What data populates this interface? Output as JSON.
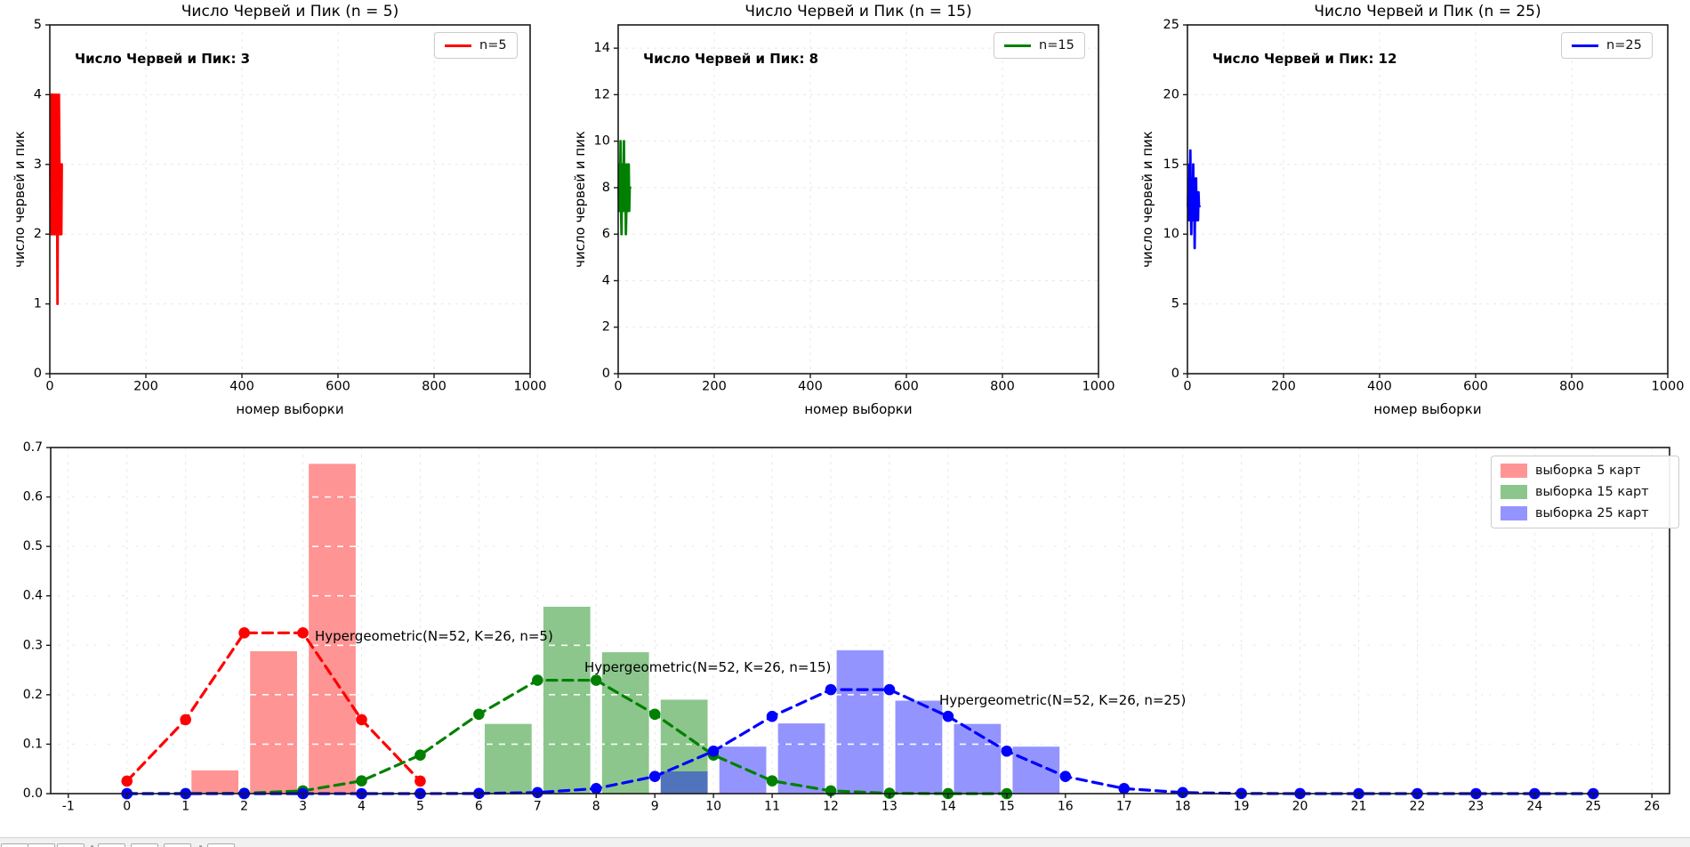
{
  "figure": {
    "background": "#ffffff"
  },
  "chart_data": [
    {
      "id": "trace-n5",
      "type": "line",
      "title": "Число Червей и Пик (n = 5)",
      "xlabel": "номер выборки",
      "ylabel": "число червей и пик",
      "annotation": "Число Червей и Пик: 3",
      "color": "#ff0000",
      "xlim": [
        0,
        1000
      ],
      "ylim": [
        0,
        5
      ],
      "xticks": [
        0,
        200,
        400,
        600,
        800,
        1000
      ],
      "yticks": [
        0,
        1,
        2,
        3,
        4,
        5
      ],
      "grid": true,
      "legend": [
        {
          "label": "n=5",
          "color": "#ff0000",
          "style": "line"
        }
      ],
      "legend_position": "upper right",
      "values": [
        3,
        2,
        4,
        3,
        2,
        4,
        3,
        2,
        3,
        4,
        2,
        3,
        2,
        4,
        3,
        1,
        3,
        2,
        4,
        3,
        2,
        3,
        3,
        2,
        3
      ]
    },
    {
      "id": "trace-n15",
      "type": "line",
      "title": "Число Червей и Пик (n = 15)",
      "xlabel": "номер выборки",
      "ylabel": "число червей и пик",
      "annotation": "Число Червей и Пик: 8",
      "color": "#008000",
      "xlim": [
        0,
        1000
      ],
      "ylim": [
        0,
        15
      ],
      "xticks": [
        0,
        200,
        400,
        600,
        800,
        1000
      ],
      "yticks": [
        0,
        2,
        4,
        6,
        8,
        10,
        12,
        14
      ],
      "grid": true,
      "legend": [
        {
          "label": "n=15",
          "color": "#008000",
          "style": "line"
        }
      ],
      "legend_position": "upper right",
      "values": [
        8,
        7,
        9,
        8,
        10,
        7,
        6,
        8,
        9,
        7,
        8,
        10,
        7,
        9,
        8,
        6,
        7,
        9,
        8,
        7,
        8,
        9,
        7,
        8,
        8
      ]
    },
    {
      "id": "trace-n25",
      "type": "line",
      "title": "Число Червей и Пик (n = 25)",
      "xlabel": "номер выборки",
      "ylabel": "число червей и пик",
      "annotation": "Число Червей и Пик: 12",
      "color": "#0000ff",
      "xlim": [
        0,
        1000
      ],
      "ylim": [
        0,
        25
      ],
      "xticks": [
        0,
        200,
        400,
        600,
        800,
        1000
      ],
      "yticks": [
        0,
        5,
        10,
        15,
        20,
        25
      ],
      "grid": true,
      "legend": [
        {
          "label": "n=25",
          "color": "#0000ff",
          "style": "line"
        }
      ],
      "legend_position": "upper right",
      "values": [
        12,
        14,
        11,
        15,
        13,
        16,
        12,
        10,
        14,
        13,
        11,
        15,
        12,
        14,
        9,
        13,
        12,
        14,
        11,
        13,
        12,
        11,
        13,
        12,
        12
      ]
    },
    {
      "id": "hist-pmf",
      "type": "bar",
      "xlim": [
        -1.3,
        26.3
      ],
      "ylim": [
        0,
        0.7
      ],
      "xticks": [
        -1,
        0,
        1,
        2,
        3,
        4,
        5,
        6,
        7,
        8,
        9,
        10,
        11,
        12,
        13,
        14,
        15,
        16,
        17,
        18,
        19,
        20,
        21,
        22,
        23,
        24,
        25,
        26
      ],
      "yticks": [
        0.0,
        0.1,
        0.2,
        0.3,
        0.4,
        0.5,
        0.6,
        0.7
      ],
      "grid": true,
      "bar_width": 0.8,
      "bar_series": [
        {
          "name": "выборка 5 карт",
          "color": "rgba(255,0,0,0.42)",
          "centers": [
            1.5,
            2.5,
            3.5
          ],
          "heights": [
            0.047,
            0.288,
            0.667
          ]
        },
        {
          "name": "выборка 15 карт",
          "color": "rgba(0,128,0,0.45)",
          "centers": [
            6.5,
            7.5,
            8.5,
            9.5
          ],
          "heights": [
            0.141,
            0.378,
            0.286,
            0.19
          ]
        },
        {
          "name": "выборка 25 карт",
          "color": "rgba(0,0,255,0.42)",
          "centers": [
            9.5,
            10.5,
            11.5,
            12.5,
            13.5,
            14.5,
            15.5
          ],
          "heights": [
            0.045,
            0.095,
            0.142,
            0.29,
            0.188,
            0.141,
            0.095
          ]
        }
      ],
      "line_series": [
        {
          "name": "Hypergeometric(N=52, K=26, n=5)",
          "color": "#ff0000",
          "x": [
            0,
            1,
            2,
            3,
            4,
            5
          ],
          "y": [
            0.02531,
            0.14956,
            0.32513,
            0.32513,
            0.14956,
            0.02531
          ]
        },
        {
          "name": "Hypergeometric(N=52, K=26, n=15)",
          "color": "#008000",
          "x": [
            0,
            1,
            2,
            3,
            4,
            5,
            6,
            7,
            8,
            9,
            10,
            11,
            12,
            13,
            14,
            15
          ],
          "y": [
            2e-06,
            5.6e-05,
            0.000754,
            0.005604,
            0.025776,
            0.077972,
            0.16052,
            0.22932,
            0.22932,
            0.16052,
            0.077972,
            0.025776,
            0.005604,
            0.000754,
            5.6e-05,
            2e-06
          ]
        },
        {
          "name": "Hypergeometric(N=52, K=26, n=25)",
          "color": "#0000ff",
          "x": [
            0,
            1,
            2,
            3,
            4,
            5,
            6,
            7,
            8,
            9,
            10,
            11,
            12,
            13,
            14,
            15,
            16,
            17,
            18,
            19,
            20,
            21,
            22,
            23,
            24,
            25
          ],
          "y": [
            0,
            0,
            0,
            1e-07,
            2e-06,
            3.2e-05,
            0.000317,
            0.002152,
            0.010221,
            0.034754,
            0.085931,
            0.15625,
            0.21033,
            0.21033,
            0.15625,
            0.085931,
            0.034754,
            0.010221,
            0.002152,
            0.000317,
            3.2e-05,
            2e-06,
            1e-07,
            0,
            0,
            0
          ]
        }
      ],
      "annotations": [
        {
          "text": "Hypergeometric(N=52, K=26, n=5)",
          "x": 3.2,
          "y": 0.305
        },
        {
          "text": "Hypergeometric(N=52, K=26, n=15)",
          "x": 7.8,
          "y": 0.243
        },
        {
          "text": "Hypergeometric(N=52, K=26, n=25)",
          "x": 13.85,
          "y": 0.176
        }
      ],
      "legend": [
        {
          "label": "выборка 5 карт",
          "color": "rgba(255,0,0,0.42)"
        },
        {
          "label": "выборка 15 карт",
          "color": "rgba(0,128,0,0.45)"
        },
        {
          "label": "выборка 25 карт",
          "color": "rgba(0,0,255,0.42)"
        }
      ],
      "legend_position": "upper right"
    }
  ],
  "toolbar": {
    "button_count": 7
  }
}
